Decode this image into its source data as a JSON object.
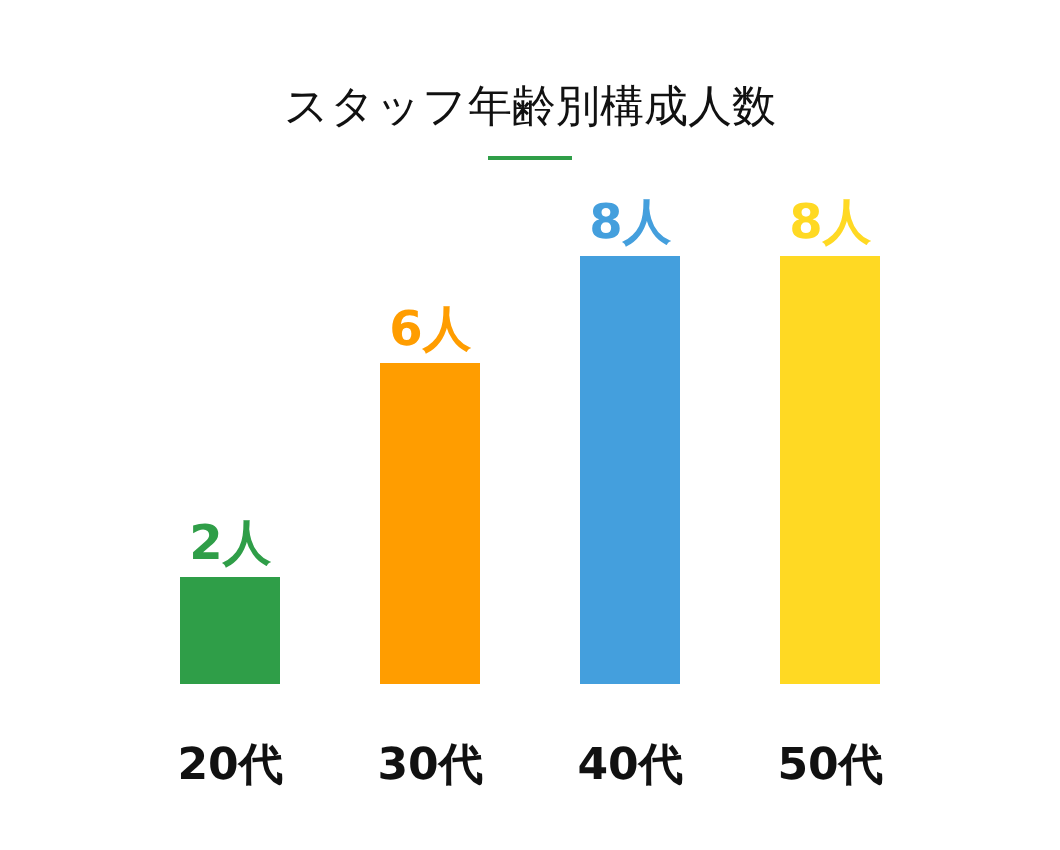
{
  "chart_data": {
    "type": "bar",
    "title": "スタッフ年齢別構成人数",
    "categories": [
      "20代",
      "30代",
      "40代",
      "50代"
    ],
    "values": [
      2,
      6,
      8,
      8
    ],
    "colors": [
      "#2f9e48",
      "#ff9d00",
      "#449fdd",
      "#ffd923"
    ],
    "value_labels": [
      "2人",
      "6人",
      "8人",
      "8人"
    ]
  }
}
